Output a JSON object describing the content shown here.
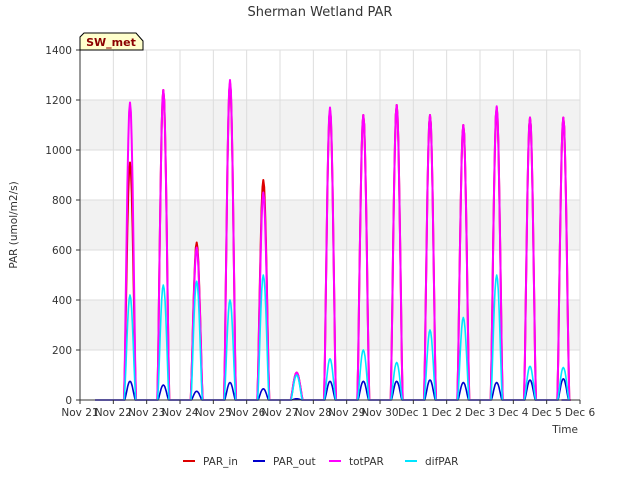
{
  "chart_data": {
    "type": "line",
    "title": "Sherman Wetland PAR",
    "xlabel": "Time",
    "ylabel": "PAR (umol/m2/s)",
    "badge": "SW_met",
    "ylim": [
      0,
      1400
    ],
    "yticks": [
      0,
      200,
      400,
      600,
      800,
      1000,
      1200,
      1400
    ],
    "xlim": [
      0,
      15
    ],
    "xtick_labels": [
      "Nov 21",
      "Nov 22",
      "Nov 23",
      "Nov 24",
      "Nov 25",
      "Nov 26",
      "Nov 27",
      "Nov 28",
      "Nov 29",
      "Nov 30",
      "Dec 1",
      "Dec 2",
      "Dec 3",
      "Dec 4",
      "Dec 5",
      "Dec 6"
    ],
    "grid": true,
    "legend_position": "bottom",
    "series": [
      {
        "name": "PAR_in",
        "color": "#dd0000",
        "daily_peaks": [
          950,
          1240,
          630,
          1270,
          880,
          110,
          1160,
          1140,
          1180,
          1140,
          1100,
          1170,
          1130,
          1130
        ]
      },
      {
        "name": "PAR_out",
        "color": "#0000cc",
        "daily_peaks": [
          75,
          60,
          35,
          70,
          45,
          5,
          75,
          75,
          75,
          80,
          70,
          70,
          80,
          85
        ]
      },
      {
        "name": "totPAR",
        "color": "#ff00ff",
        "daily_peaks": [
          1190,
          1240,
          610,
          1280,
          830,
          110,
          1170,
          1140,
          1180,
          1140,
          1100,
          1175,
          1130,
          1130
        ]
      },
      {
        "name": "difPAR",
        "color": "#00e5ff",
        "daily_peaks": [
          420,
          460,
          475,
          400,
          500,
          100,
          165,
          200,
          150,
          280,
          330,
          500,
          135,
          130
        ]
      }
    ]
  }
}
